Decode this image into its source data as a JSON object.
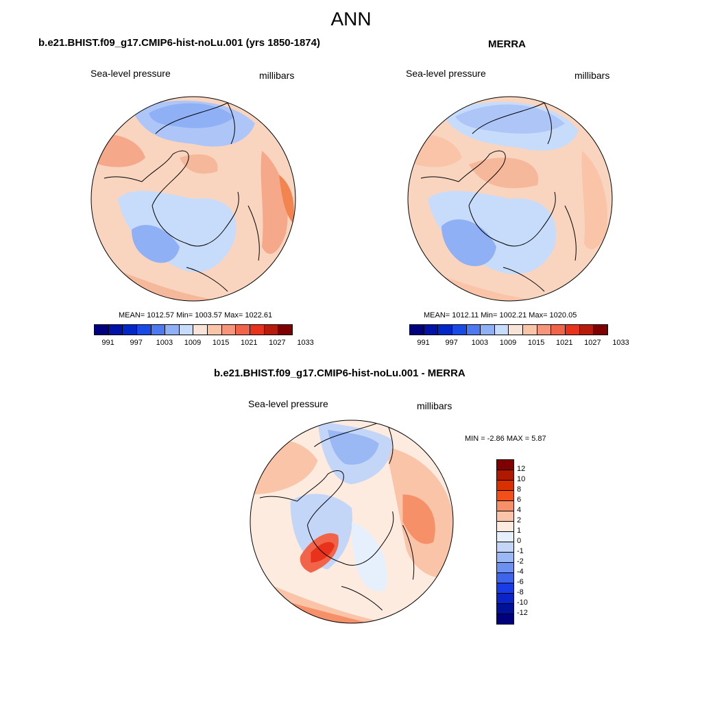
{
  "title": "ANN",
  "panels": [
    {
      "title": "b.e21.BHIST.f09_g17.CMIP6-hist-noLu.001 (yrs 1850-1874)",
      "variable": "Sea-level pressure",
      "units": "millibars",
      "stats": "MEAN= 1012.57  Min= 1003.57  Max= 1022.61"
    },
    {
      "title": "MERRA",
      "variable": "Sea-level pressure",
      "units": "millibars",
      "stats": "MEAN= 1012.11  Min= 1002.21  Max= 1020.05"
    },
    {
      "title": "b.e21.BHIST.f09_g17.CMIP6-hist-noLu.001 - MERRA",
      "variable": "Sea-level pressure",
      "units": "millibars",
      "stats": "MIN =  -2.86 MAX =   5.87"
    }
  ],
  "colorbar_abs": {
    "colors": [
      "#00007f",
      "#0012a8",
      "#0028c8",
      "#1a4ae6",
      "#4d7af0",
      "#8fb0f5",
      "#c7dcfa",
      "#f7e4d6",
      "#f9c4a8",
      "#f5967a",
      "#f2644a",
      "#e8321c",
      "#b81a0c",
      "#7f0000"
    ],
    "ticks": [
      "991",
      "997",
      "1003",
      "1009",
      "1015",
      "1021",
      "1027",
      "1033"
    ]
  },
  "colorbar_diff": {
    "colors": [
      "#7f0000",
      "#b01800",
      "#d93000",
      "#f25018",
      "#f59068",
      "#f9c4a8",
      "#fdebe0",
      "#e6f0fd",
      "#c3d6f8",
      "#9ab8f4",
      "#6b90f0",
      "#3e64ec",
      "#1a3ce6",
      "#0a24c8",
      "#001298",
      "#00007f"
    ],
    "ticks": [
      "12",
      "10",
      "8",
      "6",
      "4",
      "2",
      "1",
      "0",
      "-1",
      "-2",
      "-4",
      "-6",
      "-8",
      "-10",
      "-12"
    ]
  }
}
